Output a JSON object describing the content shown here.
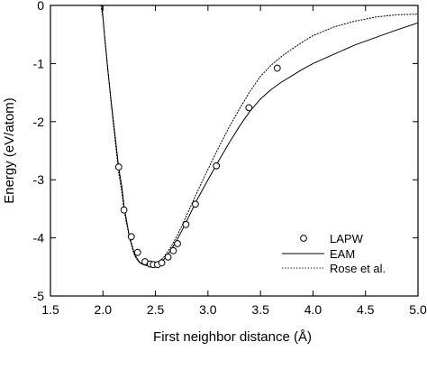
{
  "chart_data": {
    "type": "line",
    "title": "",
    "xlabel": "First neighbor distance (Å)",
    "ylabel": "Energy (eV/atom)",
    "xlim": [
      1.5,
      5.0
    ],
    "ylim": [
      -5,
      0
    ],
    "xticks": [
      "1.5",
      "2.0",
      "2.5",
      "3.0",
      "3.5",
      "4.0",
      "4.5",
      "5.0"
    ],
    "yticks": [
      "0",
      "-1",
      "-2",
      "-3",
      "-4",
      "-5"
    ],
    "grid": false,
    "legend": {
      "placement": "bottom-right",
      "entries": [
        "LAPW",
        "EAM",
        "Rose et al."
      ]
    },
    "series": [
      {
        "name": "LAPW",
        "style": "markers-open-circle",
        "x": [
          2.15,
          2.2,
          2.27,
          2.33,
          2.4,
          2.45,
          2.48,
          2.52,
          2.56,
          2.62,
          2.67,
          2.71,
          2.79,
          2.88,
          3.08,
          3.39,
          3.66
        ],
        "y": [
          -2.78,
          -3.52,
          -3.98,
          -4.25,
          -4.41,
          -4.45,
          -4.46,
          -4.46,
          -4.43,
          -4.33,
          -4.22,
          -4.1,
          -3.77,
          -3.42,
          -2.76,
          -1.76,
          -1.08
        ]
      },
      {
        "name": "EAM",
        "style": "solid",
        "x": [
          1.99,
          2.0,
          2.02,
          2.05,
          2.08,
          2.1,
          2.13,
          2.15,
          2.18,
          2.2,
          2.23,
          2.25,
          2.28,
          2.3,
          2.33,
          2.35,
          2.38,
          2.4,
          2.43,
          2.45,
          2.48,
          2.5,
          2.53,
          2.55,
          2.58,
          2.6,
          2.65,
          2.7,
          2.75,
          2.8,
          2.9,
          3.0,
          3.1,
          3.2,
          3.3,
          3.4,
          3.5,
          3.6,
          3.7,
          3.8,
          3.9,
          4.0,
          4.2,
          4.4,
          4.6,
          4.8,
          5.0
        ],
        "y": [
          0.0,
          -0.2,
          -0.62,
          -1.17,
          -1.68,
          -2.0,
          -2.47,
          -2.8,
          -3.12,
          -3.44,
          -3.76,
          -3.96,
          -4.15,
          -4.28,
          -4.37,
          -4.42,
          -4.45,
          -4.47,
          -4.47,
          -4.47,
          -4.46,
          -4.45,
          -4.43,
          -4.41,
          -4.37,
          -4.33,
          -4.2,
          -4.05,
          -3.88,
          -3.7,
          -3.33,
          -3.0,
          -2.68,
          -2.37,
          -2.08,
          -1.82,
          -1.61,
          -1.45,
          -1.32,
          -1.21,
          -1.1,
          -1.0,
          -0.84,
          -0.68,
          -0.55,
          -0.42,
          -0.3
        ]
      },
      {
        "name": "Rose et al.",
        "style": "dotted",
        "x": [
          1.98,
          2.0,
          2.02,
          2.05,
          2.08,
          2.1,
          2.13,
          2.15,
          2.18,
          2.2,
          2.23,
          2.25,
          2.28,
          2.3,
          2.33,
          2.35,
          2.38,
          2.4,
          2.43,
          2.45,
          2.48,
          2.5,
          2.53,
          2.55,
          2.58,
          2.6,
          2.65,
          2.7,
          2.75,
          2.8,
          2.9,
          3.0,
          3.1,
          3.2,
          3.3,
          3.4,
          3.5,
          3.6,
          3.7,
          3.8,
          3.9,
          4.0,
          4.2,
          4.4,
          4.6,
          4.8,
          5.0
        ],
        "y": [
          0.0,
          -0.22,
          -0.6,
          -1.17,
          -1.72,
          -2.05,
          -2.55,
          -2.88,
          -3.22,
          -3.52,
          -3.8,
          -3.98,
          -4.18,
          -4.3,
          -4.39,
          -4.43,
          -4.46,
          -4.47,
          -4.48,
          -4.47,
          -4.46,
          -4.44,
          -4.41,
          -4.38,
          -4.33,
          -4.28,
          -4.15,
          -3.98,
          -3.8,
          -3.6,
          -3.2,
          -2.82,
          -2.45,
          -2.1,
          -1.78,
          -1.48,
          -1.22,
          -1.03,
          -0.88,
          -0.75,
          -0.63,
          -0.52,
          -0.37,
          -0.27,
          -0.2,
          -0.16,
          -0.15
        ]
      }
    ]
  }
}
